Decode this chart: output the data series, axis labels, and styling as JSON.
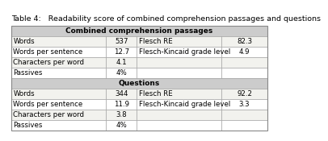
{
  "title": "Table 4:   Readability score of combined comprehension passages and questions",
  "section1_header": "Combined comprehension passages",
  "section2_header": "Questions",
  "section1_rows": [
    [
      "Words",
      "537",
      "Flesch RE",
      "82.3"
    ],
    [
      "Words per sentence",
      "12.7",
      "Flesch-Kincaid grade level",
      "4.9"
    ],
    [
      "Characters per word",
      "4.1",
      "",
      ""
    ],
    [
      "Passives",
      "4%",
      "",
      ""
    ]
  ],
  "section2_rows": [
    [
      "Words",
      "344",
      "Flesch RE",
      "92.2"
    ],
    [
      "Words per sentence",
      "11.9",
      "Flesch-Kincaid grade level",
      "3.3"
    ],
    [
      "Characters per word",
      "3.8",
      "",
      ""
    ],
    [
      "Passives",
      "4%",
      "",
      ""
    ]
  ],
  "section_header_bg": "#cccccc",
  "row_bg_light": "#f2f2ee",
  "row_bg_white": "#ffffff",
  "border_color": "#999999",
  "outer_border_color": "#888888",
  "title_fontsize": 6.8,
  "header_fontsize": 6.5,
  "cell_fontsize": 6.2,
  "col_splits": [
    0.0,
    0.37,
    0.49,
    0.82,
    1.0
  ]
}
